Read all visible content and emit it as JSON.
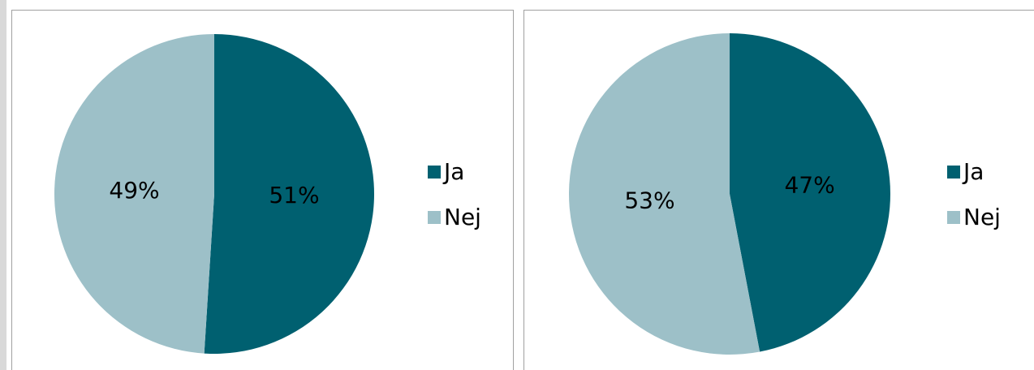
{
  "chart_data": [
    {
      "type": "pie",
      "categories": [
        "Ja",
        "Nej"
      ],
      "values": [
        51,
        49
      ],
      "value_labels": [
        "51%",
        "49%"
      ],
      "colors": [
        "#006070",
        "#9dc0c8"
      ],
      "legend": "right"
    },
    {
      "type": "pie",
      "categories": [
        "Ja",
        "Nej"
      ],
      "values": [
        47,
        53
      ],
      "value_labels": [
        "47%",
        "53%"
      ],
      "colors": [
        "#006070",
        "#9dc0c8"
      ],
      "legend": "right"
    }
  ]
}
